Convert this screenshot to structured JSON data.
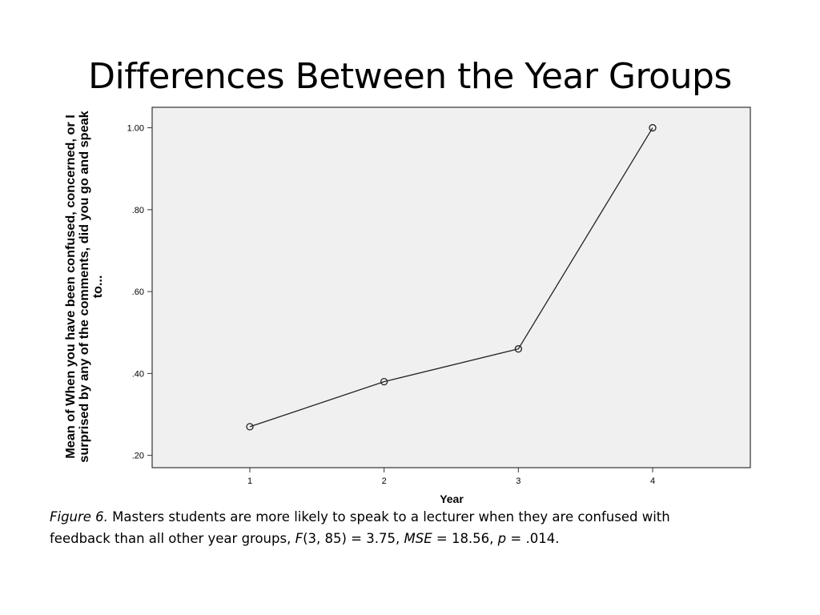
{
  "slide": {
    "title": "Differences Between the Year Groups"
  },
  "chart_data": {
    "type": "line",
    "x": [
      "1",
      "2",
      "3",
      "4"
    ],
    "xlabel": "Year",
    "ylabel_lines": [
      "Mean of When you have been confused, concerned, or I",
      "surprised by any of the comments, did you go and speak",
      "to..."
    ],
    "ylim": [
      0.17,
      1.05
    ],
    "yticks": [
      0.2,
      0.4,
      0.6,
      0.8,
      1.0
    ],
    "ytick_labels": [
      ".20",
      ".40",
      ".60",
      ".80",
      "1.00"
    ],
    "series": [
      {
        "values": [
          0.27,
          0.38,
          0.46,
          1.0
        ]
      }
    ],
    "grid": false,
    "plot_background": "#f0f0f0",
    "line_color": "#222222"
  },
  "caption": {
    "figure_label": "Figure 6.",
    "line1_text": " Masters students are more likely to speak to a lecturer when they are confused with",
    "line2_prefix": "feedback than all other year groups, ",
    "f_symbol": "F",
    "f_value": "(3, 85) = 3.75, ",
    "mse_symbol": "MSE",
    "mse_value": " = 18.56, ",
    "p_symbol": "p",
    "p_value": " = .014."
  }
}
